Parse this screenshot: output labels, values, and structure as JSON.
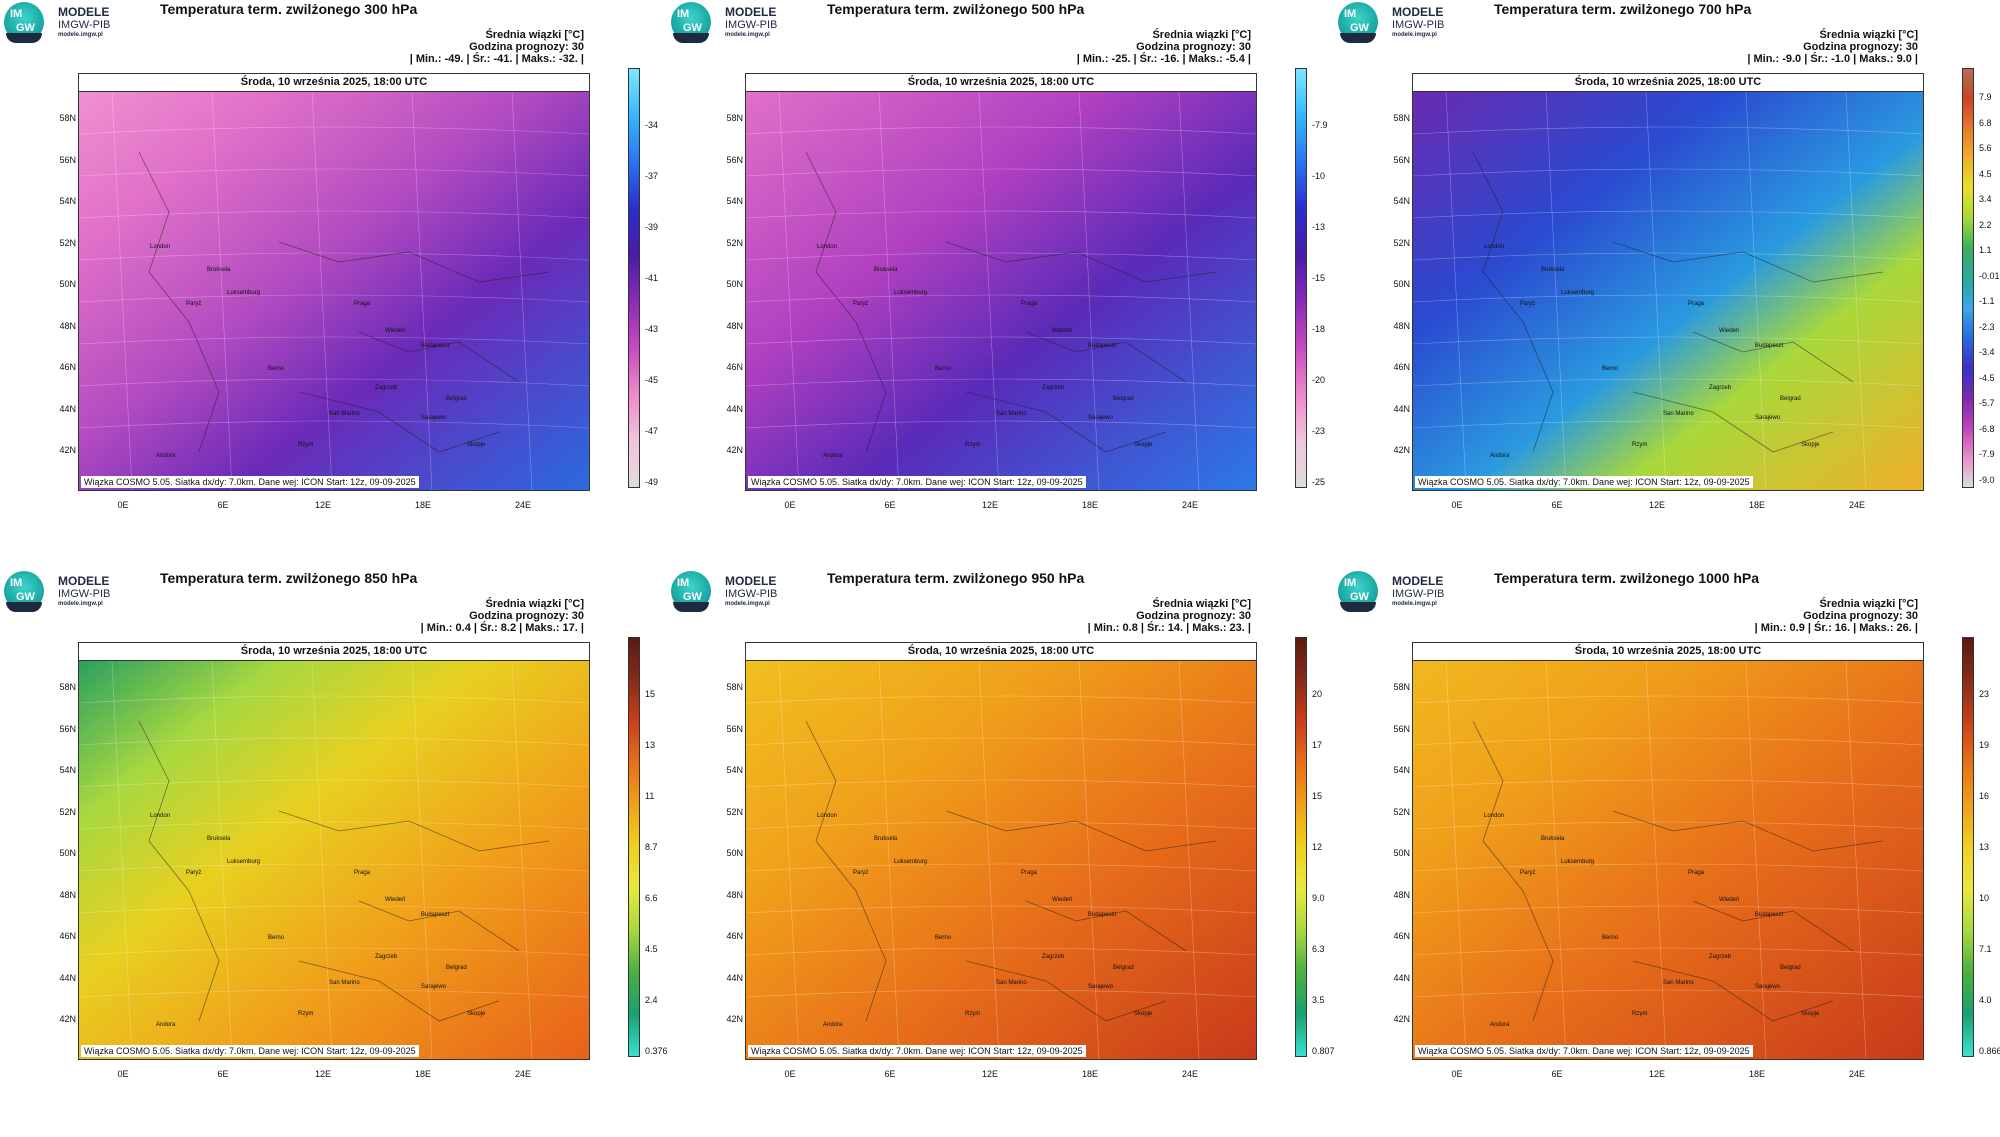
{
  "logo": {
    "abbr1": "IM",
    "abbr2": "GW",
    "line1": "MODELE",
    "line2": "IMGW-PIB",
    "line3": "modele.imgw.pl"
  },
  "common": {
    "date": "Środa, 10 września 2025, 18:00 UTC",
    "sub1": "Średnia wiązki [°C]",
    "sub2": "Godzina prognozy: 30",
    "footer": "Wiązka COSMO 5.05. Siatka dx/dy: 7.0km. Dane wej: ICON Start: 12z, 09-09-2025",
    "lat_labels": [
      "58N",
      "56N",
      "54N",
      "52N",
      "50N",
      "48N",
      "46N",
      "44N",
      "42N"
    ],
    "lon_labels": [
      "0E",
      "6E",
      "12E",
      "18E",
      "24E"
    ],
    "cities": [
      "London",
      "Bruksela",
      "Paryż",
      "Luksemburg",
      "Praga",
      "Wiedeń",
      "Budapeszt",
      "Berno",
      "Zagrzeb",
      "Belgrad",
      "San Marino",
      "Sarajewo",
      "Rzym",
      "Skopje",
      "Andora"
    ]
  },
  "panels": [
    {
      "title": "Temperatura term. zwilżonego 300 hPa",
      "stats": "| Min.:   -49. | Śr.:   -41. | Maks.:   -32. |",
      "ticks": [
        "-34",
        "-37",
        "-39",
        "-41",
        "-43",
        "-45",
        "-47",
        "-49"
      ],
      "scheme": "cold",
      "pattern": "p300"
    },
    {
      "title": "Temperatura term. zwilżonego 500 hPa",
      "stats": "| Min.:   -25. | Śr.:   -16. | Maks.:   -5.4 |",
      "ticks": [
        "-7.9",
        "-10",
        "-13",
        "-15",
        "-18",
        "-20",
        "-23",
        "-25"
      ],
      "scheme": "cold",
      "pattern": "p500"
    },
    {
      "title": "Temperatura term. zwilżonego 700 hPa",
      "stats": "| Min.:   -9.0 | Śr.:   -1.0 | Maks.:   9.0 |",
      "ticks": [
        "7.9",
        "6.8",
        "5.6",
        "4.5",
        "3.4",
        "2.2",
        "1.1",
        "-0.012",
        "-1.1",
        "-2.3",
        "-3.4",
        "-4.5",
        "-5.7",
        "-6.8",
        "-7.9",
        "-9.0"
      ],
      "scheme": "mid",
      "pattern": "p700"
    },
    {
      "title": "Temperatura term. zwilżonego 850 hPa",
      "stats": "| Min.:   0.4 | Śr.:   8.2 | Maks.:   17. |",
      "ticks": [
        "15",
        "13",
        "11",
        "8.7",
        "6.6",
        "4.5",
        "2.4",
        "0.376"
      ],
      "scheme": "warm",
      "pattern": "p850"
    },
    {
      "title": "Temperatura term. zwilżonego 950 hPa",
      "stats": "| Min.:   0.8 | Śr.:   14. | Maks.:   23. |",
      "ticks": [
        "20",
        "17",
        "15",
        "12",
        "9.0",
        "6.3",
        "3.5",
        "0.807"
      ],
      "scheme": "warm",
      "pattern": "p950"
    },
    {
      "title": "Temperatura term. zwilżonego 1000 hPa",
      "stats": "| Min.:   0.9 | Śr.:   16. | Maks.:   26. |",
      "ticks": [
        "23",
        "19",
        "16",
        "13",
        "10",
        "7.1",
        "4.0",
        "0.866"
      ],
      "scheme": "warm",
      "pattern": "p1000"
    }
  ]
}
